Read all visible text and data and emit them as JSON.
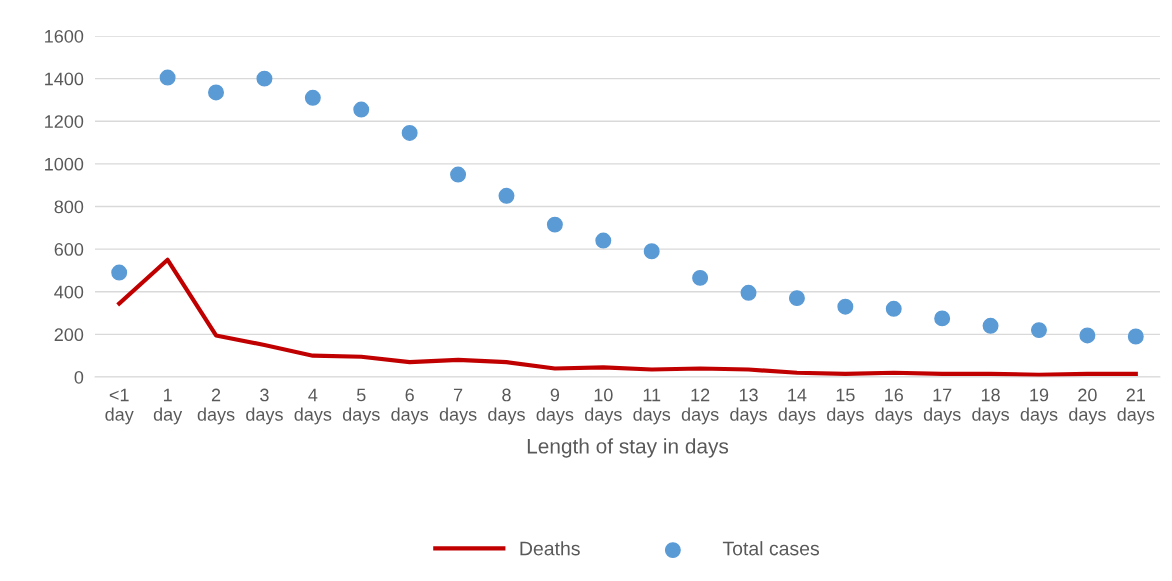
{
  "chart_data": {
    "type": "line",
    "xlabel": "Length of stay in days",
    "categories": [
      "<1\nday",
      "1\nday",
      "2\ndays",
      "3\ndays",
      "4\ndays",
      "5\ndays",
      "6\ndays",
      "7\ndays",
      "8\ndays",
      "9\ndays",
      "10\ndays",
      "11\ndays",
      "12\ndays",
      "13\ndays",
      "14\ndays",
      "15\ndays",
      "16\ndays",
      "17\ndays",
      "18\ndays",
      "19\ndays",
      "20\ndays",
      "21\ndays"
    ],
    "series": [
      {
        "name": "Deaths",
        "color": "#c00000",
        "values": [
          345,
          550,
          195,
          150,
          100,
          95,
          70,
          80,
          70,
          40,
          45,
          35,
          40,
          35,
          20,
          15,
          20,
          15,
          15,
          10,
          15,
          15
        ]
      },
      {
        "name": "Total cases",
        "type": "scatter",
        "color": "#5b9bd5",
        "values": [
          490,
          1405,
          1335,
          1400,
          1310,
          1255,
          1145,
          950,
          850,
          715,
          640,
          590,
          465,
          395,
          370,
          330,
          320,
          275,
          240,
          220,
          195,
          190
        ]
      }
    ],
    "ylim": [
      0,
      1600
    ],
    "yticks": [
      0,
      200,
      400,
      600,
      800,
      1000,
      1200,
      1400,
      1600
    ],
    "grid": "y",
    "legend": "bottom"
  }
}
